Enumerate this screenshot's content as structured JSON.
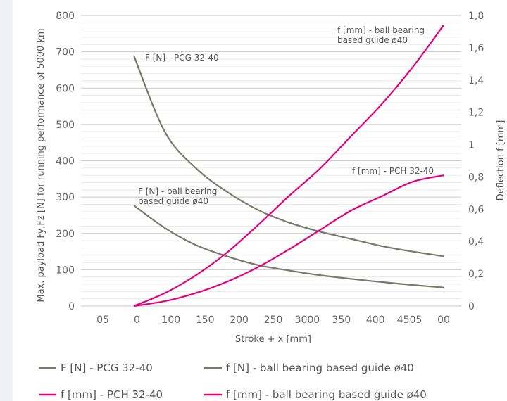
{
  "chart_data": {
    "type": "line",
    "title": "",
    "xlabel": "Stroke + x  [mm]",
    "ylabel_left": "Max. payload Fy,Fz [N] for running performance of 5000 km",
    "ylabel_right": "Deflection f [mm]",
    "ylim_left": [
      0,
      800
    ],
    "ylim_right": [
      0,
      1.8
    ],
    "y_ticks_left": [
      "0",
      "100",
      "200",
      "300",
      "400",
      "500",
      "600",
      "700",
      "800"
    ],
    "y_ticks_right": [
      "0",
      "0,2",
      "0,4",
      "0,6",
      "0,8",
      "1",
      "1,2",
      "1,4",
      "1,6",
      "1,8"
    ],
    "x_tick_labels": [
      "05",
      "0",
      "100",
      "150",
      "200",
      "250",
      "3000",
      "350",
      "400",
      "4505",
      "00"
    ],
    "grid": true,
    "legend_position": "bottom",
    "series": [
      {
        "name": "F [N] - PCG 32-40",
        "axis": "left",
        "color": "#7a776c",
        "x": [
          0,
          50,
          100,
          150,
          200,
          250,
          300,
          350,
          400,
          450,
          500
        ],
        "y": [
          690,
          480,
          380,
          315,
          265,
          230,
          205,
          185,
          165,
          150,
          137
        ],
        "annotation": "F [N] - PCG 32-40"
      },
      {
        "name": "f [N] - ball bearing based guide ø40",
        "axis": "left",
        "color": "#7a776c",
        "x": [
          0,
          50,
          100,
          150,
          200,
          250,
          300,
          350,
          400,
          450,
          500
        ],
        "y": [
          277,
          215,
          168,
          137,
          113,
          98,
          85,
          75,
          66,
          58,
          51
        ],
        "annotation": "F [N] - ball bearing based guide ø40"
      },
      {
        "name": "f [mm] - PCH 32-40",
        "axis": "right",
        "color": "#e4007c",
        "x": [
          0,
          50,
          100,
          150,
          200,
          250,
          300,
          350,
          400,
          450,
          500
        ],
        "y": [
          0,
          0.03,
          0.08,
          0.15,
          0.24,
          0.35,
          0.47,
          0.59,
          0.68,
          0.77,
          0.81
        ],
        "annotation": "f [mm] - PCH 32-40"
      },
      {
        "name": "f [mm] - ball bearing based guide ø40",
        "axis": "right",
        "color": "#e4007c",
        "x": [
          0,
          50,
          100,
          150,
          200,
          250,
          300,
          350,
          400,
          450,
          500
        ],
        "y": [
          0,
          0.08,
          0.19,
          0.33,
          0.5,
          0.68,
          0.85,
          1.05,
          1.25,
          1.48,
          1.74
        ],
        "annotation": "f [mm] - ball bearing based guide ø40"
      }
    ]
  }
}
